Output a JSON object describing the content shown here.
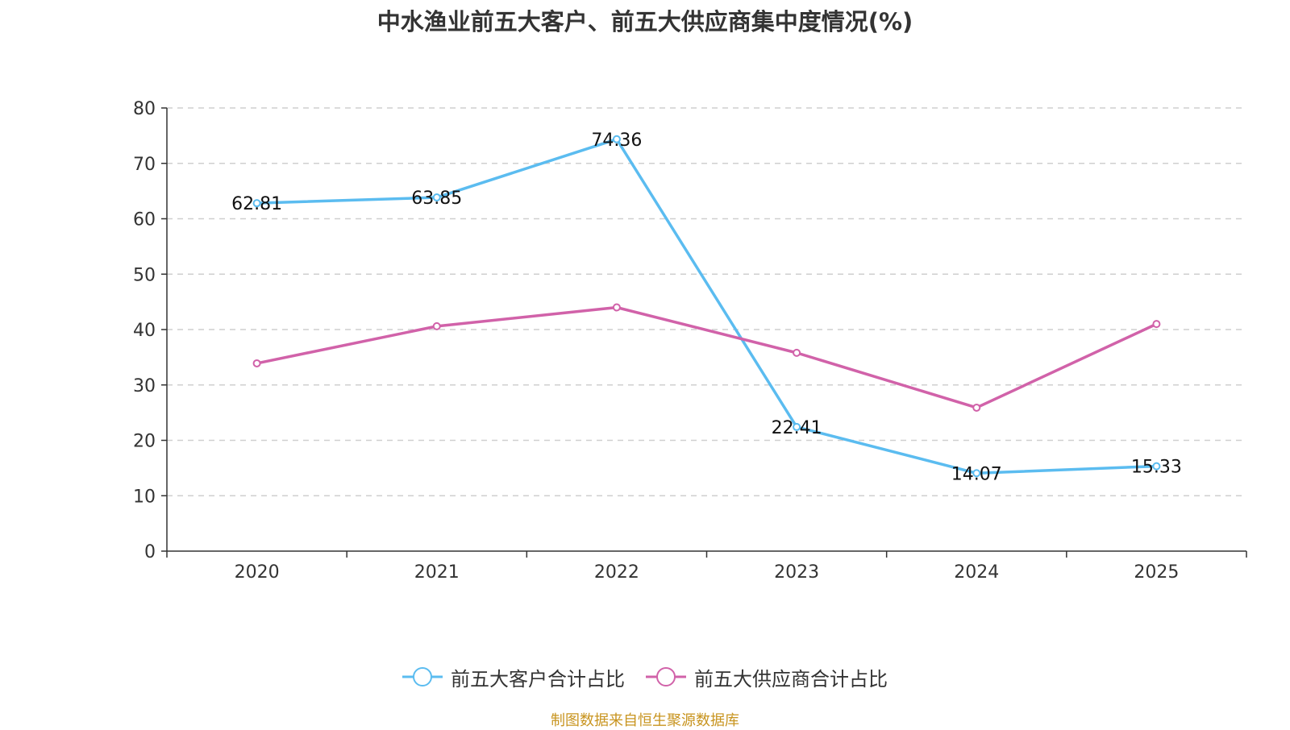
{
  "chart_data": {
    "type": "line",
    "title": "中水渔业前五大客户、前五大供应商集中度情况(%)",
    "categories": [
      "2020",
      "2021",
      "2022",
      "2023",
      "2024",
      "2025"
    ],
    "series": [
      {
        "name": "前五大客户合计占比",
        "values": [
          62.81,
          63.85,
          74.36,
          22.41,
          14.07,
          15.33
        ],
        "color": "#5bbcf0",
        "labels_shown": true
      },
      {
        "name": "前五大供应商合计占比",
        "values": [
          33.9,
          40.6,
          44.0,
          35.8,
          25.9,
          41.0
        ],
        "color": "#d162a9",
        "labels_shown": false
      }
    ],
    "ylim": [
      0,
      80
    ],
    "yticks": [
      0,
      10,
      20,
      30,
      40,
      50,
      60,
      70,
      80
    ],
    "grid": true,
    "legend_position": "bottom",
    "xlabel": "",
    "ylabel": ""
  },
  "source": "制图数据来自恒生聚源数据库"
}
